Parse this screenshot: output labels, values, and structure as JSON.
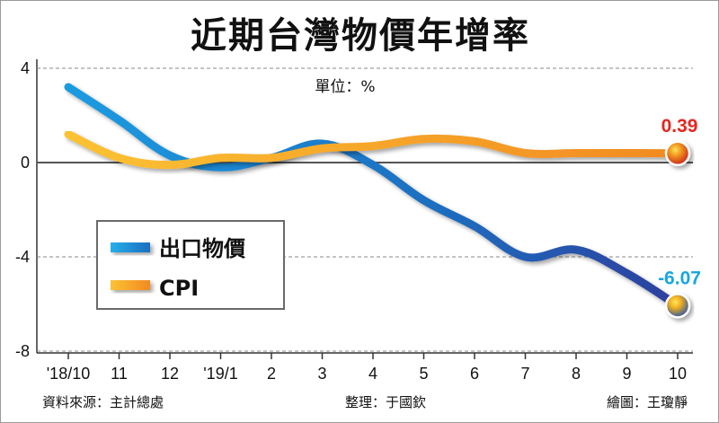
{
  "chart_data": {
    "type": "line",
    "title": "近期台灣物價年增率",
    "unit_label": "單位：%",
    "categories": [
      "'18/10",
      "11",
      "12",
      "'19/1",
      "2",
      "3",
      "4",
      "5",
      "6",
      "7",
      "8",
      "9",
      "10"
    ],
    "ylim": [
      -8,
      4
    ],
    "yticks": [
      "4",
      "0",
      "-4",
      "-8"
    ],
    "grid": true,
    "legend_position": "left-middle",
    "series": [
      {
        "name": "出口物價",
        "color": "#1a86c8",
        "color_end": "#2e3f9e",
        "values": [
          3.2,
          1.8,
          0.3,
          -0.2,
          0.2,
          0.8,
          -0.1,
          -1.6,
          -2.7,
          -4.0,
          -3.7,
          -4.7,
          -6.07
        ],
        "end_label": "-6.07",
        "end_label_color": "#19a7df"
      },
      {
        "name": "CPI",
        "color": "#f39a1c",
        "color_start": "#fbc233",
        "values": [
          1.2,
          0.2,
          -0.1,
          0.2,
          0.2,
          0.6,
          0.7,
          1.0,
          0.9,
          0.4,
          0.4,
          0.4,
          0.39
        ],
        "end_label": "0.39",
        "end_label_color": "#e52620"
      }
    ]
  },
  "footer": {
    "source": "資料來源：主計總處",
    "editor": "整理：于國欽",
    "artist": "繪圖：王瓊靜"
  }
}
